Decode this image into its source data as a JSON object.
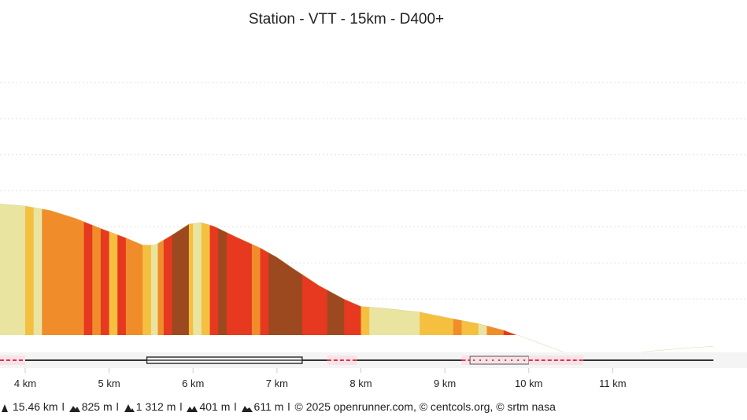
{
  "chart_data": {
    "type": "area",
    "title": "Station - VTT - 15km - D400+",
    "xlabel": "",
    "ylabel": "",
    "x_unit": "km",
    "xlim": [
      3.7,
      12.6
    ],
    "ylim": [
      1050,
      1460
    ],
    "x_ticks": [
      {
        "value": 4,
        "label": "4 km"
      },
      {
        "value": 5,
        "label": "5 km"
      },
      {
        "value": 6,
        "label": "6 km"
      },
      {
        "value": 7,
        "label": "7 km"
      },
      {
        "value": 8,
        "label": "8 km"
      },
      {
        "value": 9,
        "label": "9 km"
      },
      {
        "value": 10,
        "label": "10 km"
      },
      {
        "value": 11,
        "label": "11 km"
      }
    ],
    "y_gridlines": [
      1100,
      1150,
      1200,
      1250,
      1300,
      1350,
      1400
    ],
    "grid": true,
    "elevation_profile": [
      {
        "x": 3.7,
        "y": 1232
      },
      {
        "x": 4.0,
        "y": 1229
      },
      {
        "x": 4.3,
        "y": 1223
      },
      {
        "x": 4.6,
        "y": 1212
      },
      {
        "x": 4.9,
        "y": 1198
      },
      {
        "x": 5.2,
        "y": 1185
      },
      {
        "x": 5.4,
        "y": 1175
      },
      {
        "x": 5.55,
        "y": 1175
      },
      {
        "x": 5.75,
        "y": 1189
      },
      {
        "x": 5.95,
        "y": 1204
      },
      {
        "x": 6.1,
        "y": 1206
      },
      {
        "x": 6.25,
        "y": 1201
      },
      {
        "x": 6.5,
        "y": 1187
      },
      {
        "x": 6.8,
        "y": 1171
      },
      {
        "x": 7.0,
        "y": 1158
      },
      {
        "x": 7.2,
        "y": 1142
      },
      {
        "x": 7.5,
        "y": 1119
      },
      {
        "x": 7.8,
        "y": 1100
      },
      {
        "x": 8.0,
        "y": 1090
      },
      {
        "x": 8.3,
        "y": 1087
      },
      {
        "x": 8.7,
        "y": 1082
      },
      {
        "x": 9.0,
        "y": 1075
      },
      {
        "x": 9.4,
        "y": 1066
      },
      {
        "x": 9.7,
        "y": 1057
      },
      {
        "x": 10.0,
        "y": 1044
      },
      {
        "x": 10.3,
        "y": 1031
      },
      {
        "x": 10.55,
        "y": 1020
      },
      {
        "x": 10.8,
        "y": 1016
      },
      {
        "x": 11.1,
        "y": 1022
      },
      {
        "x": 11.5,
        "y": 1028
      },
      {
        "x": 11.9,
        "y": 1032
      },
      {
        "x": 12.2,
        "y": 1034
      }
    ],
    "slope_bands": [
      {
        "from": 3.7,
        "to": 4.0,
        "color": "#e9e49f"
      },
      {
        "from": 4.0,
        "to": 4.1,
        "color": "#f5c040"
      },
      {
        "from": 4.1,
        "to": 4.2,
        "color": "#e9e49f"
      },
      {
        "from": 4.2,
        "to": 4.7,
        "color": "#f08d2a"
      },
      {
        "from": 4.7,
        "to": 4.8,
        "color": "#e6391f"
      },
      {
        "from": 4.8,
        "to": 4.9,
        "color": "#f08d2a"
      },
      {
        "from": 4.9,
        "to": 5.0,
        "color": "#e6391f"
      },
      {
        "from": 5.0,
        "to": 5.1,
        "color": "#f5c040"
      },
      {
        "from": 5.1,
        "to": 5.2,
        "color": "#e6391f"
      },
      {
        "from": 5.2,
        "to": 5.4,
        "color": "#f08d2a"
      },
      {
        "from": 5.4,
        "to": 5.5,
        "color": "#f5c040"
      },
      {
        "from": 5.5,
        "to": 5.58,
        "color": "#e9e49f"
      },
      {
        "from": 5.58,
        "to": 5.65,
        "color": "#f08d2a"
      },
      {
        "from": 5.65,
        "to": 5.75,
        "color": "#e6391f"
      },
      {
        "from": 5.75,
        "to": 5.95,
        "color": "#9c4920"
      },
      {
        "from": 5.95,
        "to": 6.0,
        "color": "#f5c040"
      },
      {
        "from": 6.0,
        "to": 6.1,
        "color": "#e9e49f"
      },
      {
        "from": 6.1,
        "to": 6.2,
        "color": "#f5c040"
      },
      {
        "from": 6.2,
        "to": 6.3,
        "color": "#e6391f"
      },
      {
        "from": 6.3,
        "to": 6.4,
        "color": "#9c4920"
      },
      {
        "from": 6.4,
        "to": 6.7,
        "color": "#e6391f"
      },
      {
        "from": 6.7,
        "to": 6.8,
        "color": "#f08d2a"
      },
      {
        "from": 6.8,
        "to": 6.9,
        "color": "#e6391f"
      },
      {
        "from": 6.9,
        "to": 7.3,
        "color": "#9c4920"
      },
      {
        "from": 7.3,
        "to": 7.6,
        "color": "#e6391f"
      },
      {
        "from": 7.6,
        "to": 7.8,
        "color": "#9c4920"
      },
      {
        "from": 7.8,
        "to": 8.0,
        "color": "#e6391f"
      },
      {
        "from": 8.0,
        "to": 8.1,
        "color": "#f5c040"
      },
      {
        "from": 8.1,
        "to": 8.7,
        "color": "#e9e49f"
      },
      {
        "from": 8.7,
        "to": 9.1,
        "color": "#f5c040"
      },
      {
        "from": 9.1,
        "to": 9.2,
        "color": "#f08d2a"
      },
      {
        "from": 9.2,
        "to": 9.4,
        "color": "#f5c040"
      },
      {
        "from": 9.4,
        "to": 9.5,
        "color": "#e9e49f"
      },
      {
        "from": 9.5,
        "to": 9.7,
        "color": "#f08d2a"
      },
      {
        "from": 9.7,
        "to": 10.1,
        "color": "#e6391f"
      },
      {
        "from": 10.1,
        "to": 10.3,
        "color": "#f08d2a"
      },
      {
        "from": 10.3,
        "to": 10.4,
        "color": "#e6391f"
      },
      {
        "from": 10.4,
        "to": 10.5,
        "color": "#f08d2a"
      },
      {
        "from": 10.5,
        "to": 10.6,
        "color": "#f5c040"
      },
      {
        "from": 10.6,
        "to": 10.8,
        "color": "#e9e49f"
      },
      {
        "from": 10.8,
        "to": 11.1,
        "color": "#f5c040"
      },
      {
        "from": 11.1,
        "to": 12.2,
        "color": "#e9e49f"
      }
    ],
    "surface_track": [
      {
        "from": 3.7,
        "to": 4.0,
        "style": "dashed-red"
      },
      {
        "from": 4.0,
        "to": 5.45,
        "style": "solid"
      },
      {
        "from": 5.45,
        "to": 7.3,
        "style": "double"
      },
      {
        "from": 7.3,
        "to": 7.6,
        "style": "solid"
      },
      {
        "from": 7.6,
        "to": 7.95,
        "style": "dashed-red"
      },
      {
        "from": 7.95,
        "to": 9.2,
        "style": "solid"
      },
      {
        "from": 9.2,
        "to": 9.3,
        "style": "dashed-red"
      },
      {
        "from": 9.3,
        "to": 10.0,
        "style": "boxed-dotted"
      },
      {
        "from": 10.0,
        "to": 10.65,
        "style": "dashed-red"
      },
      {
        "from": 10.65,
        "to": 12.2,
        "style": "solid"
      }
    ],
    "colors": {
      "pale": "#e9e49f",
      "yellow": "#f5c040",
      "orange": "#f08d2a",
      "red": "#e6391f",
      "brown": "#9c4920",
      "track": "#333333",
      "track_red": "#d9334f",
      "track_band": "#f7e3e7"
    }
  },
  "footer": {
    "distance": "15.46 km",
    "elevation_gain": "825 m",
    "max_altitude": "1 312 m",
    "min_altitude": "401 m",
    "elevation_loss": "611 m",
    "separator": "l",
    "credits": "© 2025 openrunner.com, © centcols.org, © srtm nasa",
    "icons": [
      "distance-icon",
      "elevation-gain-icon",
      "max-altitude-icon",
      "min-altitude-icon",
      "elevation-loss-icon"
    ]
  }
}
